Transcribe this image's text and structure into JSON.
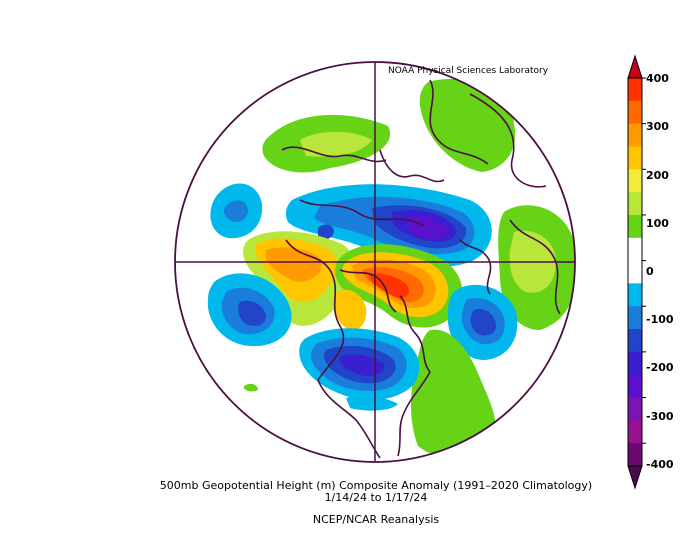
{
  "credit": "NOAA Physical Sciences Laboratory",
  "title": "500mb Geopotential Height (m) Composite Anomaly (1991–2020 Climatology)",
  "date_range": "1/14/24   to 1/17/24",
  "dataset": "NCEP/NCAR Reanalysis",
  "colorbar": {
    "labels": [
      "400",
      "300",
      "200",
      "100",
      "0",
      "-100",
      "-200",
      "-300",
      "-400"
    ],
    "colors": [
      "#ff3300",
      "#ff6a00",
      "#ff9a00",
      "#ffc600",
      "#f4ec3c",
      "#b8e63a",
      "#66d317",
      "#ffffff",
      "#ffffff",
      "#00b8ec",
      "#1a7ddb",
      "#2045c8",
      "#3a1fd0",
      "#5b10cc",
      "#7a14b4",
      "#98128f",
      "#6a0a70"
    ]
  },
  "map": {
    "projection": "north polar stereographic",
    "region": "Northern Hemisphere 20N-90N"
  }
}
